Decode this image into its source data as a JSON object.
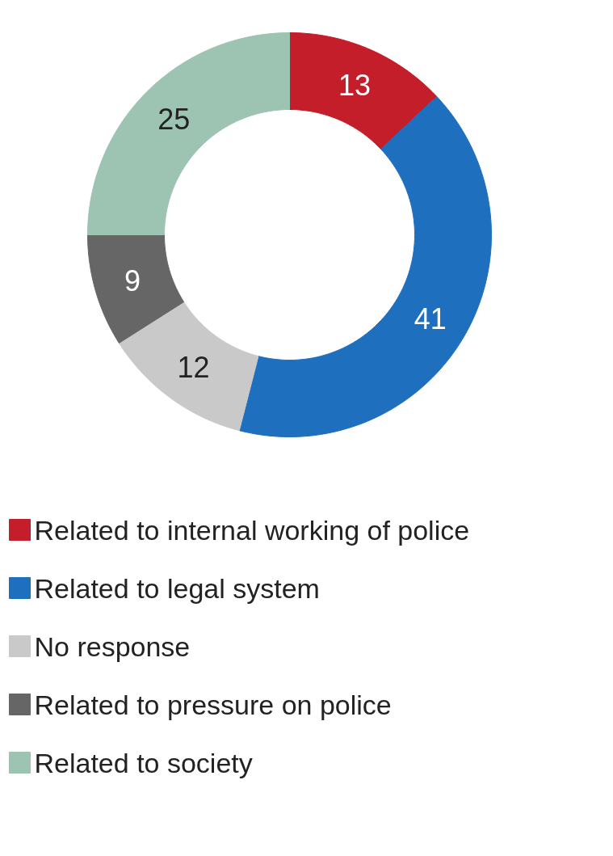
{
  "chart_data": {
    "type": "donut",
    "categories": [
      "Related to internal working of police",
      "Related to legal system",
      "No response",
      "Related to pressure on police",
      "Related to society"
    ],
    "values": [
      13,
      41,
      12,
      9,
      25
    ],
    "colors": [
      "#c41e2a",
      "#1f6fbf",
      "#c9c9c9",
      "#666666",
      "#9dc3b3"
    ],
    "data_labels": true,
    "legend": "bottom"
  }
}
